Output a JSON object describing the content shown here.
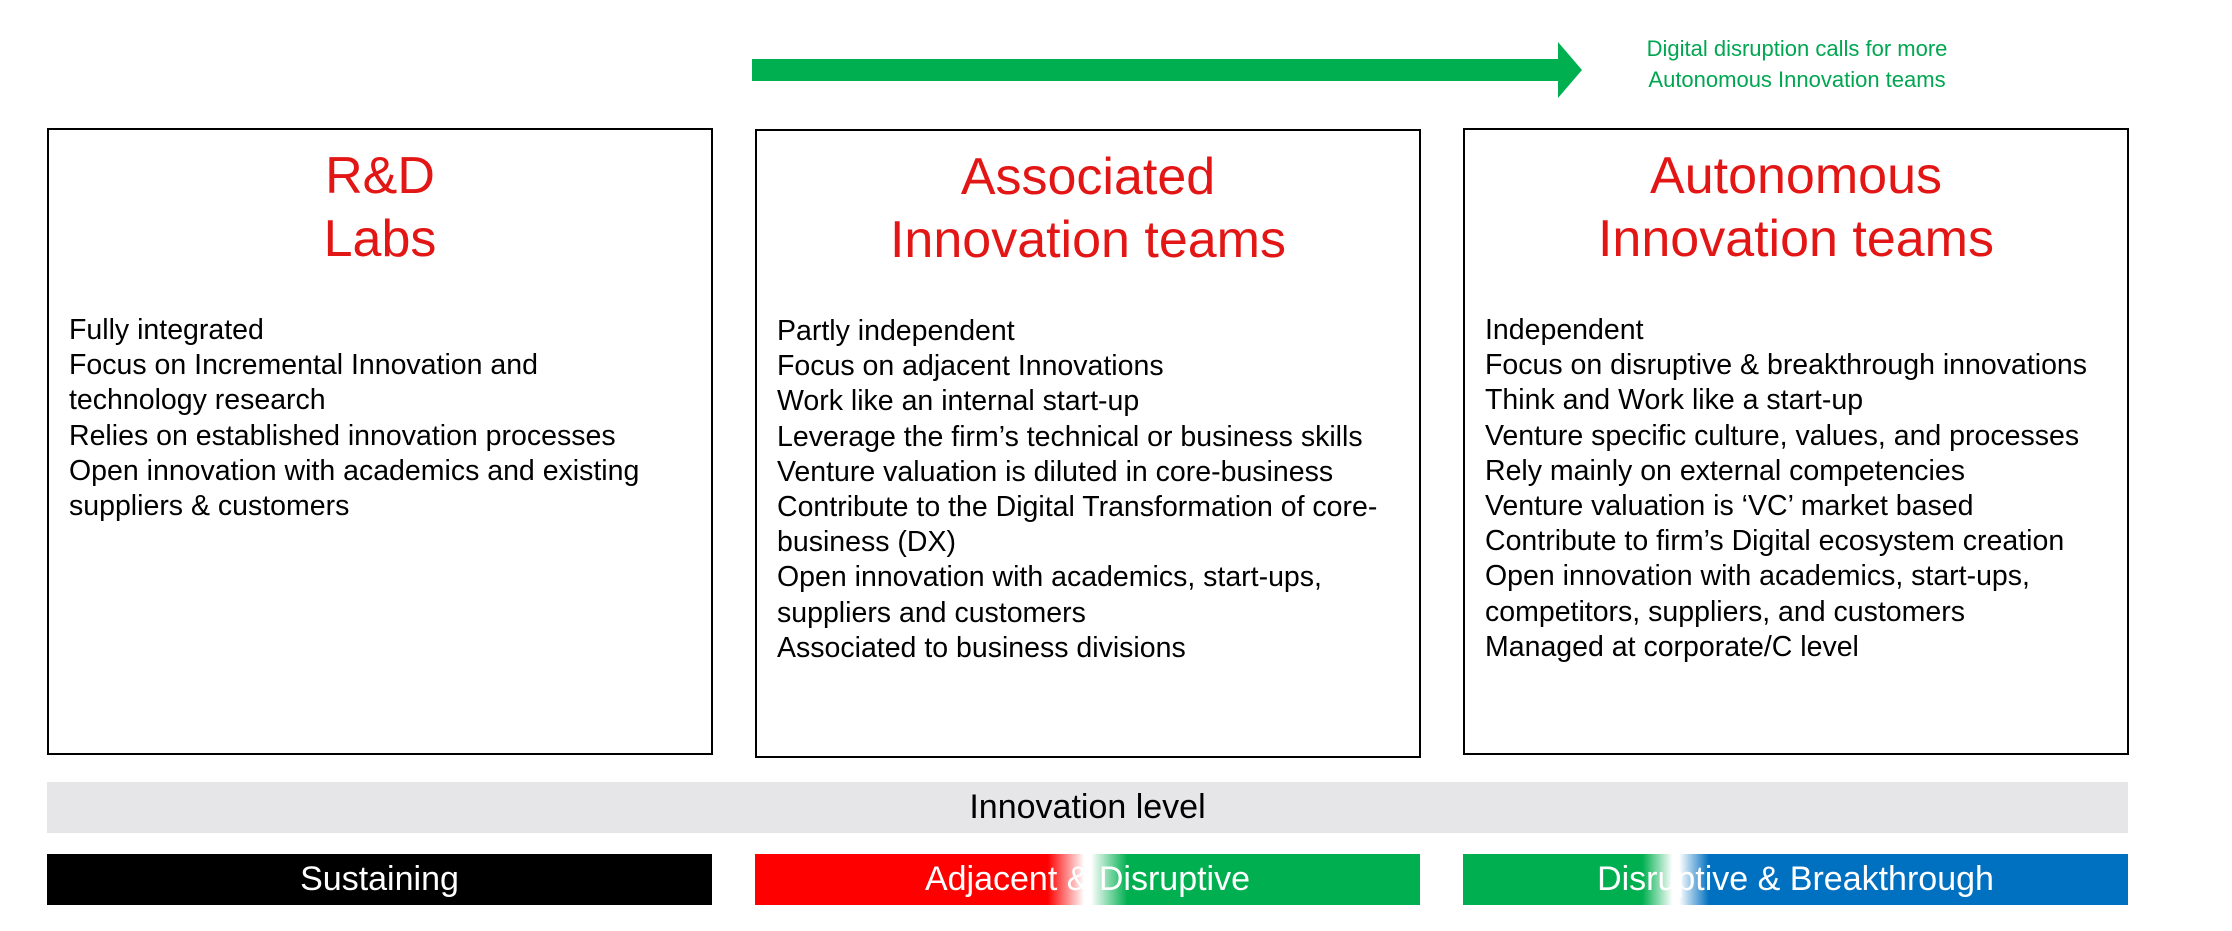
{
  "callout": {
    "line1": "Digital disruption calls for more",
    "line2": "Autonomous Innovation teams"
  },
  "colors": {
    "arrow": "#00b050",
    "callout_text": "#00a651",
    "title": "#e31616",
    "sustaining": "#000000",
    "adjacent": "#ff0000",
    "disruptive": "#00b050",
    "breakthrough": "#0070c0",
    "band": "#e6e6e8"
  },
  "cards": [
    {
      "title_line1": "R&D",
      "title_line2": "Labs",
      "items": [
        "Fully integrated",
        "Focus on Incremental Innovation and technology research",
        "Relies on established innovation processes",
        "Open innovation with academics and existing suppliers & customers"
      ]
    },
    {
      "title_line1": "Associated",
      "title_line2": "Innovation teams",
      "items": [
        "Partly independent",
        "Focus on adjacent Innovations",
        "Work like an internal start-up",
        "Leverage the firm’s technical or business skills",
        "Venture valuation is diluted in core-business",
        "Contribute to the Digital Transformation of core-business (DX)",
        "Open innovation with academics, start-ups, suppliers and customers",
        "Associated to business divisions"
      ]
    },
    {
      "title_line1": "Autonomous",
      "title_line2": "Innovation teams",
      "items": [
        "Independent",
        "Focus on disruptive & breakthrough innovations",
        "Think and Work like a start-up",
        "Venture specific culture, values, and processes",
        "Rely mainly on external competencies",
        "Venture valuation is ‘VC’ market based",
        "Contribute to firm’s Digital ecosystem creation",
        "Open innovation with academics, start-ups, competitors, suppliers, and customers",
        "Managed at corporate/C level"
      ]
    }
  ],
  "innovation_level": "Innovation level",
  "levels": {
    "sustaining": "Sustaining",
    "adjacent_disruptive": "Adjacent & Disruptive",
    "disruptive_breakthrough": "Disruptive & Breakthrough"
  }
}
